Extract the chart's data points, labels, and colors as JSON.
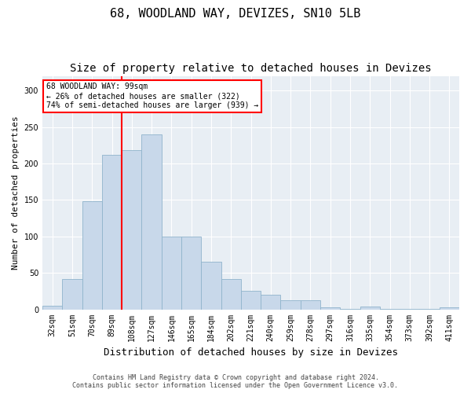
{
  "title": "68, WOODLAND WAY, DEVIZES, SN10 5LB",
  "subtitle": "Size of property relative to detached houses in Devizes",
  "xlabel": "Distribution of detached houses by size in Devizes",
  "ylabel": "Number of detached properties",
  "categories": [
    "32sqm",
    "51sqm",
    "70sqm",
    "89sqm",
    "108sqm",
    "127sqm",
    "146sqm",
    "165sqm",
    "184sqm",
    "202sqm",
    "221sqm",
    "240sqm",
    "259sqm",
    "278sqm",
    "297sqm",
    "316sqm",
    "335sqm",
    "354sqm",
    "373sqm",
    "392sqm",
    "411sqm"
  ],
  "values": [
    5,
    42,
    148,
    212,
    218,
    240,
    100,
    100,
    65,
    42,
    25,
    20,
    12,
    12,
    3,
    1,
    4,
    1,
    1,
    1,
    3
  ],
  "bar_color": "#c8d8ea",
  "bar_edge_color": "#90b4cc",
  "ylim": [
    0,
    320
  ],
  "yticks": [
    0,
    50,
    100,
    150,
    200,
    250,
    300
  ],
  "annotation_text": "68 WOODLAND WAY: 99sqm\n← 26% of detached houses are smaller (322)\n74% of semi-detached houses are larger (939) →",
  "annotation_box_color": "white",
  "annotation_box_edgecolor": "red",
  "vline_color": "red",
  "vline_x": 3.5,
  "background_color": "#e8eef4",
  "grid_color": "white",
  "footer_line1": "Contains HM Land Registry data © Crown copyright and database right 2024.",
  "footer_line2": "Contains public sector information licensed under the Open Government Licence v3.0.",
  "title_fontsize": 11,
  "subtitle_fontsize": 10,
  "xlabel_fontsize": 9,
  "ylabel_fontsize": 8,
  "tick_fontsize": 7,
  "annot_fontsize": 7,
  "footer_fontsize": 6
}
